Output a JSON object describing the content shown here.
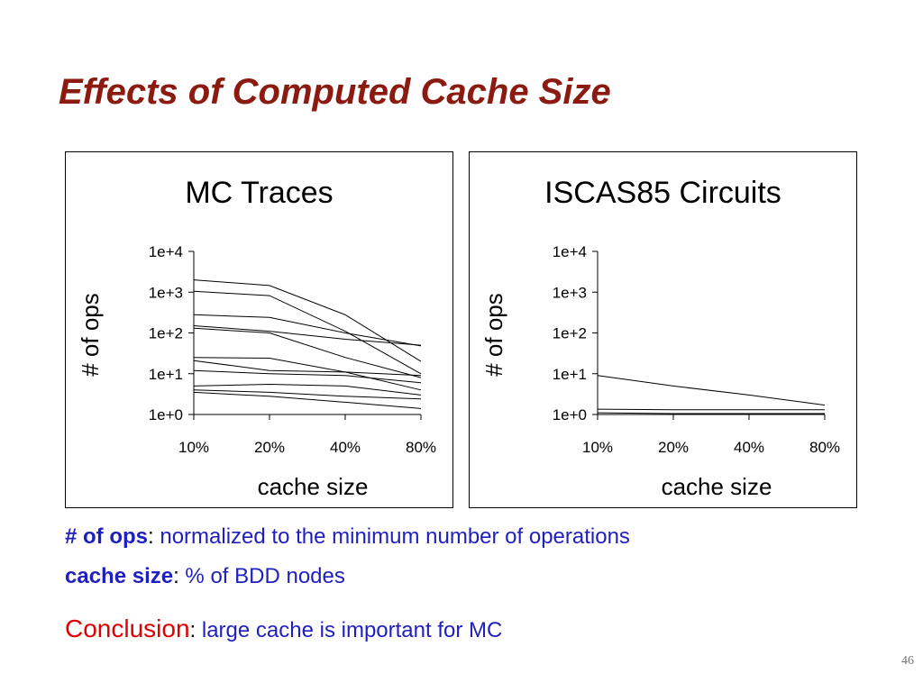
{
  "slide": {
    "title": "Effects of Computed Cache Size",
    "page_number": "46"
  },
  "notes": [
    {
      "term": "# of ops",
      "separator": ":",
      "text": " normalized to the minimum number of operations"
    },
    {
      "term": "cache size",
      "separator": ":",
      "text": " % of BDD nodes"
    }
  ],
  "conclusion": {
    "term": "Conclusion",
    "separator": ":",
    "text": " large cache is important for MC"
  },
  "colors": {
    "title": "#8b1a10",
    "note_term": "#1f1fbf",
    "conclusion_term": "#e00000",
    "line": "#000000"
  },
  "chart_data": [
    {
      "type": "line",
      "title": "MC Traces",
      "xlabel": "cache size",
      "ylabel": "# of ops",
      "categories": [
        "10%",
        "20%",
        "40%",
        "80%"
      ],
      "y_scale": "log10",
      "ylim": [
        1,
        10000
      ],
      "y_ticks": [
        "1e+0",
        "1e+1",
        "1e+2",
        "1e+3",
        "1e+4"
      ],
      "grid": false,
      "series": [
        {
          "values": [
            2000,
            1450,
            280,
            20
          ]
        },
        {
          "values": [
            1050,
            820,
            110,
            10
          ]
        },
        {
          "values": [
            280,
            240,
            100,
            48
          ]
        },
        {
          "values": [
            150,
            110,
            70,
            50
          ]
        },
        {
          "values": [
            130,
            100,
            25,
            8
          ]
        },
        {
          "values": [
            25,
            24,
            11,
            4
          ]
        },
        {
          "values": [
            21,
            12,
            11,
            9
          ]
        },
        {
          "values": [
            12,
            10,
            9,
            6
          ]
        },
        {
          "values": [
            5,
            5.5,
            5,
            3
          ]
        },
        {
          "values": [
            4,
            3.5,
            2.8,
            2.4
          ]
        },
        {
          "values": [
            3.5,
            2.8,
            2,
            1.4
          ]
        }
      ]
    },
    {
      "type": "line",
      "title": "ISCAS85 Circuits",
      "xlabel": "cache size",
      "ylabel": "# of ops",
      "categories": [
        "10%",
        "20%",
        "40%",
        "80%"
      ],
      "y_scale": "log10",
      "ylim": [
        1,
        10000
      ],
      "y_ticks": [
        "1e+0",
        "1e+1",
        "1e+2",
        "1e+3",
        "1e+4"
      ],
      "grid": false,
      "series": [
        {
          "values": [
            9,
            5,
            3,
            1.7
          ]
        },
        {
          "values": [
            1.35,
            1.3,
            1.3,
            1.3
          ]
        },
        {
          "values": [
            1.1,
            1.05,
            1.05,
            1.05
          ]
        }
      ]
    }
  ]
}
